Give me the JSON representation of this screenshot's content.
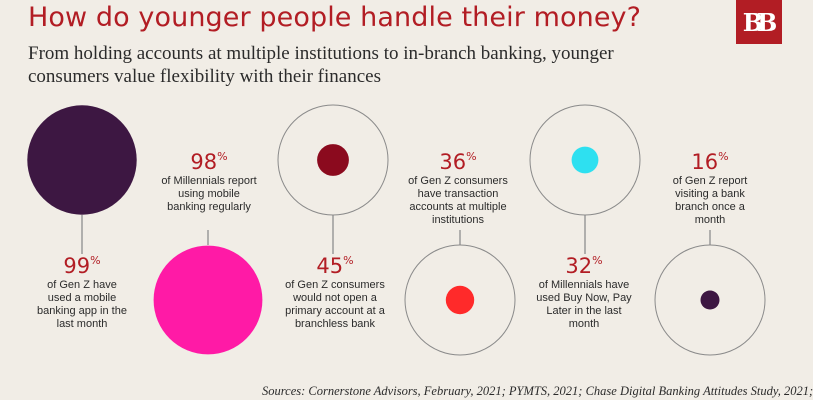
{
  "header": {
    "title": "How do younger people handle their money?",
    "subtitle": "From holding accounts at multiple institutions to in-branch banking, younger consumers value flexibility with their finances",
    "logo_text": "BB"
  },
  "chart_data": {
    "type": "bubble",
    "unit": "%",
    "items": [
      {
        "value": 99,
        "pct": "%",
        "text": "of Gen Z have used a mobile banking app in the last month",
        "color": "#3d1742",
        "outline": false
      },
      {
        "value": 98,
        "pct": "%",
        "text": "of Millennials report using mobile banking regularly",
        "color": "#ff1aa6",
        "outline": false
      },
      {
        "value": 45,
        "pct": "%",
        "text": "of Gen Z consumers would not open a primary account at a branchless bank",
        "color": "#8b0a1e",
        "outline": true
      },
      {
        "value": 36,
        "pct": "%",
        "text": "of Gen Z consumers have transaction accounts at multiple institutions",
        "color": "#ff2a2a",
        "outline": true
      },
      {
        "value": 32,
        "pct": "%",
        "text": "of Millennials have used Buy Now, Pay Later in the last month",
        "color": "#2ee0f0",
        "outline": true
      },
      {
        "value": 16,
        "pct": "%",
        "text": "of Gen Z report visiting a bank branch once a month",
        "color": "#3d1742",
        "outline": true
      }
    ]
  },
  "footer": {
    "sources": "Sources:  Cornerstone Advisors, February, 2021; PYMTS, 2021; Chase Digital Banking Attitudes Study, 2021;"
  }
}
